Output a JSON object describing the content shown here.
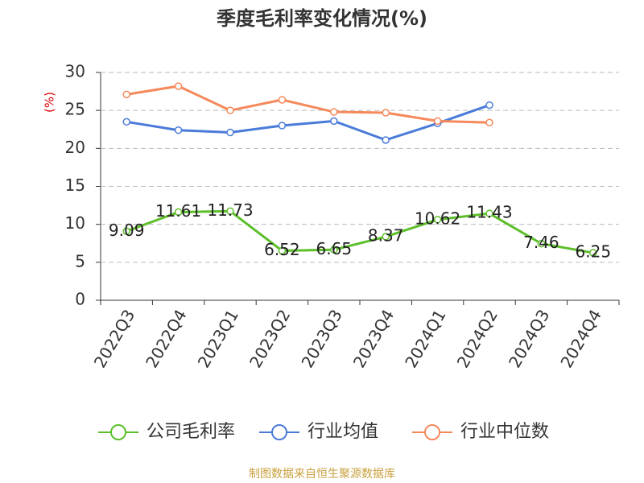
{
  "chart_data": {
    "type": "line",
    "title": "季度毛利率变化情况(%)",
    "y_label": "(%)",
    "categories": [
      "2022Q3",
      "2022Q4",
      "2023Q1",
      "2023Q2",
      "2023Q3",
      "2023Q4",
      "2024Q1",
      "2024Q2",
      "2024Q3",
      "2024Q4"
    ],
    "series": [
      {
        "name": "公司毛利率",
        "color": "#5cbf2a",
        "values": [
          9.09,
          11.61,
          11.73,
          6.52,
          6.65,
          8.37,
          10.62,
          11.43,
          7.46,
          6.25
        ],
        "show_labels": true
      },
      {
        "name": "行业均值",
        "color": "#4a7bd9",
        "values": [
          23.5,
          22.4,
          22.1,
          23.0,
          23.6,
          21.1,
          23.3,
          25.7,
          null,
          null
        ]
      },
      {
        "name": "行业中位数",
        "color": "#f5895b",
        "values": [
          27.1,
          28.2,
          25.0,
          26.4,
          24.8,
          24.7,
          23.6,
          23.4,
          null,
          null
        ]
      }
    ],
    "ylim": [
      0,
      30
    ],
    "yticks": [
      0,
      5,
      10,
      15,
      20,
      25,
      30
    ],
    "grid": true,
    "legend": "bottom",
    "source": "制图数据来自恒生聚源数据库"
  }
}
